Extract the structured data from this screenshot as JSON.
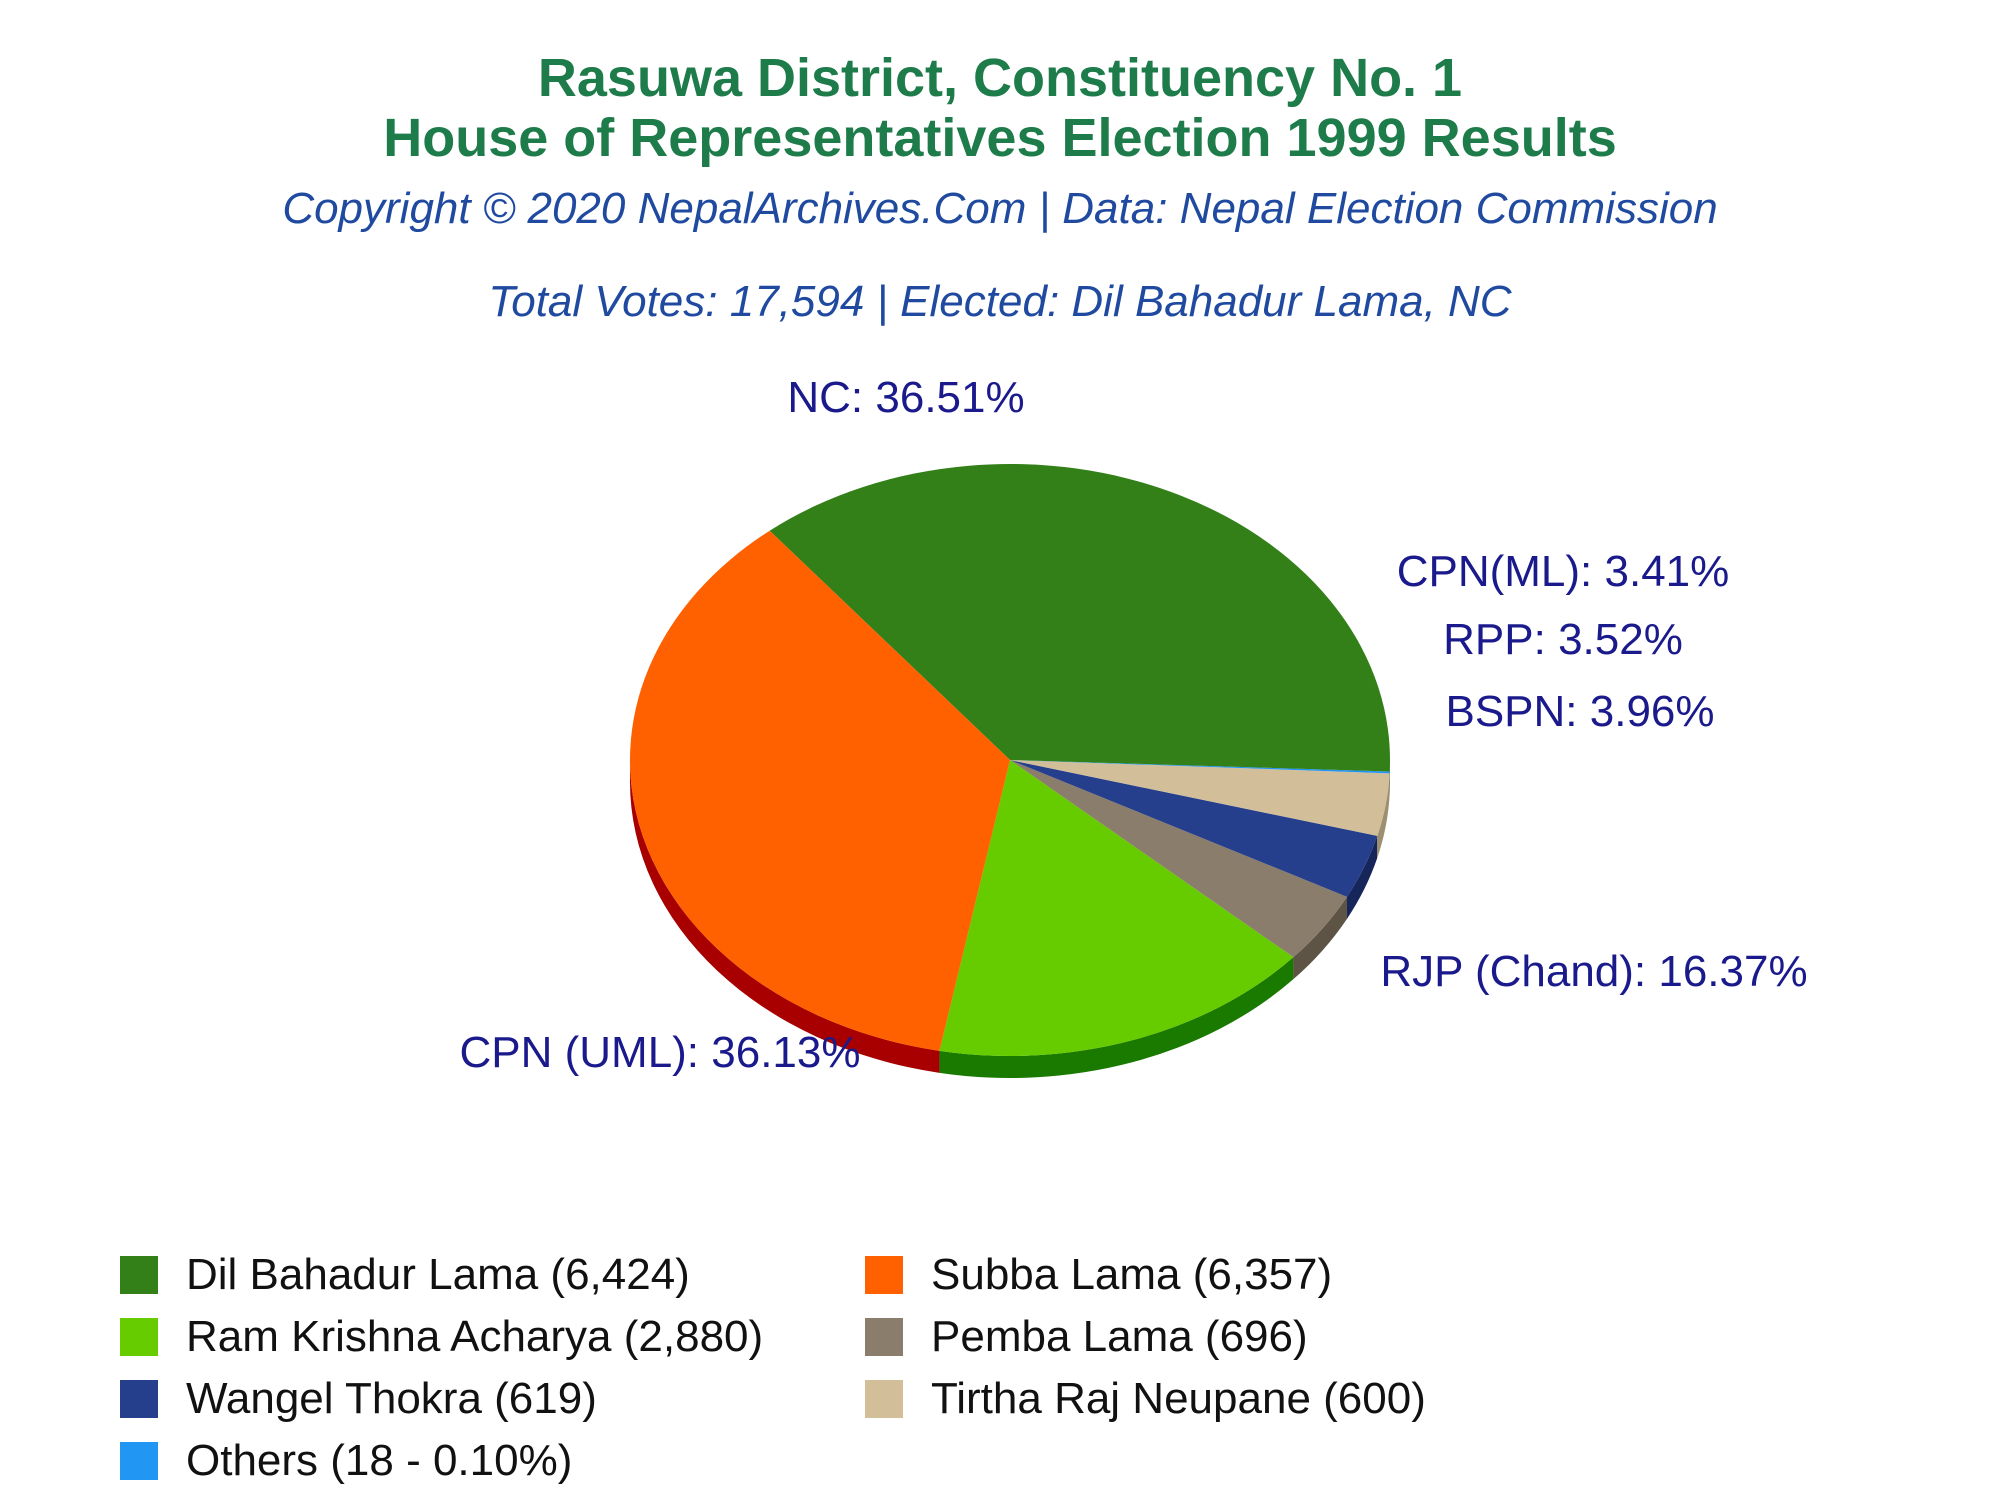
{
  "title_line1": "Rasuwa District, Constituency No. 1",
  "title_line2": "House of Representatives Election 1999 Results",
  "copyright": "Copyright © 2020 NepalArchives.Com | Data: Nepal Election Commission",
  "summary": "Total Votes: 17,594 | Elected: Dil Bahadur Lama, NC",
  "chart_data": {
    "type": "pie",
    "total_votes": 17594,
    "slices": [
      {
        "party": "NC",
        "candidate": "Dil Bahadur Lama",
        "votes": 6424,
        "percent": 36.51,
        "label": "NC: 36.51%",
        "legend": "Dil Bahadur Lama (6,424)",
        "color": "#338018",
        "side": "#1f5a0c"
      },
      {
        "party": "CPN (UML)",
        "candidate": "Subba Lama",
        "votes": 6357,
        "percent": 36.13,
        "label": "CPN (UML): 36.13%",
        "legend": "Subba Lama (6,357)",
        "color": "#ff6000",
        "side": "#a80000"
      },
      {
        "party": "RJP (Chand)",
        "candidate": "Ram Krishna Acharya",
        "votes": 2880,
        "percent": 16.37,
        "label": "RJP (Chand): 16.37%",
        "legend": "Ram Krishna Acharya (2,880)",
        "color": "#66cc00",
        "side": "#1a7a00"
      },
      {
        "party": "BSPN",
        "candidate": "Pemba Lama",
        "votes": 696,
        "percent": 3.96,
        "label": "BSPN: 3.96%",
        "legend": "Pemba Lama (696)",
        "color": "#8b7d6b",
        "side": "#5e5446"
      },
      {
        "party": "RPP",
        "candidate": "Wangel Thokra",
        "votes": 619,
        "percent": 3.52,
        "label": "RPP: 3.52%",
        "legend": "Wangel Thokra (619)",
        "color": "#263f8c",
        "side": "#16255a"
      },
      {
        "party": "CPN(ML)",
        "candidate": "Tirtha Raj Neupane",
        "votes": 600,
        "percent": 3.41,
        "label": "CPN(ML): 3.41%",
        "legend": "Tirtha Raj Neupane (600)",
        "color": "#d2bf9a",
        "side": "#9e8f70"
      },
      {
        "party": "Others",
        "candidate": "Others",
        "votes": 18,
        "percent": 0.1,
        "label": "",
        "legend": "Others (18 - 0.10%)",
        "color": "#2196f3",
        "side": "#1565c0"
      }
    ],
    "legend_order": [
      0,
      1,
      2,
      3,
      4,
      5,
      6
    ]
  }
}
